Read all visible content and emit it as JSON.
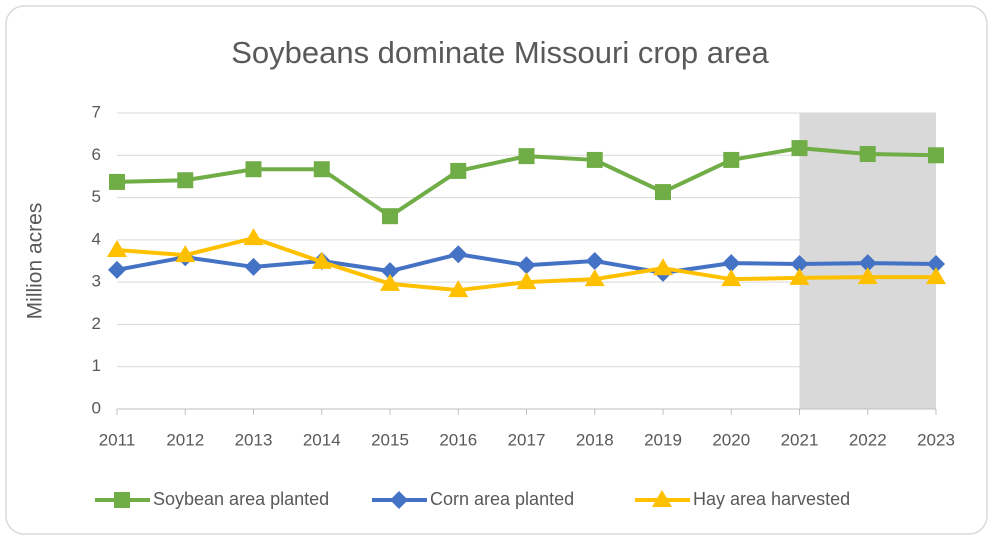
{
  "chart_data": {
    "type": "line",
    "title": "Soybeans dominate Missouri crop area",
    "y_label": "Million acres",
    "x": [
      2011,
      2012,
      2013,
      2014,
      2015,
      2016,
      2017,
      2018,
      2019,
      2020,
      2021,
      2022,
      2023
    ],
    "xlim": [
      2011,
      2023
    ],
    "xticks": [
      2011,
      2012,
      2013,
      2014,
      2015,
      2016,
      2017,
      2018,
      2019,
      2020,
      2021,
      2022,
      2023
    ],
    "ylim": [
      0,
      7
    ],
    "yticks": [
      0,
      1,
      2,
      3,
      4,
      5,
      6,
      7
    ],
    "grid": true,
    "highlight": {
      "from": 2021,
      "to": 2023,
      "color": "#d9d9d9"
    },
    "legend": "bottom",
    "series": [
      {
        "name": "Soybean area planted",
        "color": "#70ad47",
        "marker": "square",
        "values": [
          5.37,
          5.41,
          5.67,
          5.67,
          4.56,
          5.63,
          5.98,
          5.89,
          5.13,
          5.89,
          6.17,
          6.03,
          6.0
        ]
      },
      {
        "name": "Corn area planted",
        "color": "#4472c4",
        "marker": "diamond",
        "values": [
          3.29,
          3.59,
          3.36,
          3.5,
          3.26,
          3.66,
          3.4,
          3.5,
          3.22,
          3.45,
          3.43,
          3.45,
          3.43
        ]
      },
      {
        "name": "Hay area harvested",
        "color": "#ffc000",
        "marker": "triangle",
        "values": [
          3.76,
          3.64,
          4.04,
          3.48,
          2.96,
          2.81,
          3.0,
          3.07,
          3.33,
          3.07,
          3.1,
          3.12,
          3.12
        ]
      }
    ]
  }
}
